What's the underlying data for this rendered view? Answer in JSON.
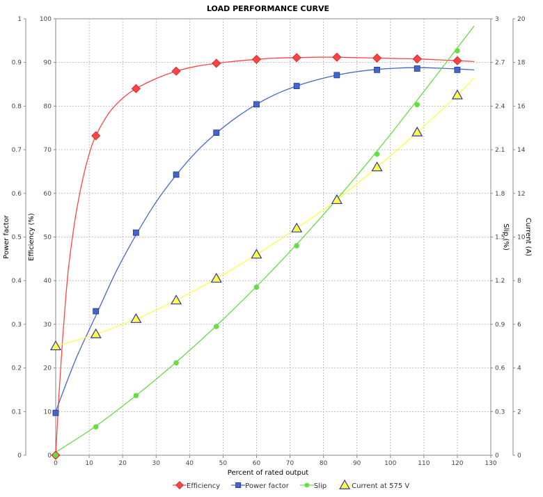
{
  "chart_data": {
    "type": "line",
    "title": "LOAD PERFORMANCE CURVE",
    "xlabel": "Percent of rated output",
    "xlim": [
      0,
      130
    ],
    "xticks": [
      0,
      10,
      20,
      30,
      40,
      50,
      60,
      70,
      80,
      90,
      100,
      110,
      120,
      130
    ],
    "grid": true,
    "legend_position": "bottom",
    "axes": [
      {
        "id": "pf",
        "label": "Power factor",
        "side": "left",
        "order": 0,
        "range": [
          0,
          1
        ],
        "ticks": [
          "0",
          "0.1",
          "0.2",
          "0.3",
          "0.4",
          "0.5",
          "0.6",
          "0.7",
          "0.8",
          "0.9",
          "1"
        ]
      },
      {
        "id": "eff",
        "label": "Efficiency (%)",
        "side": "left",
        "order": 1,
        "range": [
          0,
          100
        ],
        "ticks": [
          "0",
          "10",
          "20",
          "30",
          "40",
          "50",
          "60",
          "70",
          "80",
          "90",
          "100"
        ]
      },
      {
        "id": "slip",
        "label": "Slip (%)",
        "side": "right",
        "order": 0,
        "range": [
          0,
          3
        ],
        "ticks": [
          "0",
          "0.3",
          "0.6",
          "0.9",
          "1.2",
          "1.5",
          "1.8",
          "2.1",
          "2.4",
          "2.7",
          "3"
        ]
      },
      {
        "id": "cur",
        "label": "Current (A)",
        "side": "right",
        "order": 1,
        "range": [
          0,
          20
        ],
        "ticks": [
          "0",
          "2",
          "4",
          "6",
          "8",
          "10",
          "12",
          "14",
          "16",
          "18",
          "20"
        ]
      }
    ],
    "series": [
      {
        "name": "Efficiency",
        "axis": "eff",
        "color": "#ff4444",
        "marker": "diamond",
        "x": [
          0,
          12,
          24,
          36,
          48,
          60,
          72,
          84,
          96,
          108,
          120
        ],
        "values": [
          0,
          73.2,
          84.0,
          88.0,
          89.8,
          90.7,
          91.1,
          91.2,
          91.0,
          90.8,
          90.4
        ],
        "curve_x": [
          0,
          1,
          2,
          3,
          4,
          6,
          8,
          10,
          12,
          16,
          20,
          24,
          30,
          36,
          42,
          48,
          54,
          60,
          66,
          72,
          78,
          84,
          90,
          96,
          102,
          108,
          114,
          120,
          125
        ],
        "curve_y": [
          0,
          14,
          26,
          36,
          44,
          55,
          63,
          69,
          73.2,
          78.5,
          81.8,
          84.0,
          86.3,
          88.0,
          89.1,
          89.8,
          90.3,
          90.7,
          91.0,
          91.1,
          91.2,
          91.2,
          91.1,
          91.0,
          90.9,
          90.8,
          90.6,
          90.4,
          90.2
        ]
      },
      {
        "name": "Power factor",
        "axis": "pf",
        "color": "#4466cc",
        "marker": "square",
        "x": [
          0,
          12,
          24,
          36,
          48,
          60,
          72,
          84,
          96,
          108,
          120
        ],
        "values": [
          0.097,
          0.33,
          0.51,
          0.643,
          0.739,
          0.804,
          0.846,
          0.871,
          0.883,
          0.886,
          0.883
        ],
        "curve_x": [
          0,
          6,
          12,
          18,
          24,
          30,
          36,
          42,
          48,
          54,
          60,
          66,
          72,
          78,
          84,
          90,
          96,
          102,
          108,
          114,
          120,
          125
        ],
        "curve_y": [
          0.1,
          0.22,
          0.32,
          0.42,
          0.505,
          0.58,
          0.642,
          0.695,
          0.738,
          0.774,
          0.804,
          0.828,
          0.846,
          0.86,
          0.871,
          0.879,
          0.884,
          0.887,
          0.888,
          0.887,
          0.885,
          0.883
        ]
      },
      {
        "name": "Slip",
        "axis": "slip",
        "color": "#66dd44",
        "marker": "circle",
        "x": [
          0,
          12,
          24,
          36,
          48,
          60,
          72,
          84,
          96,
          108,
          120
        ],
        "values": [
          0,
          0.195,
          0.41,
          0.635,
          0.885,
          1.155,
          1.44,
          1.75,
          2.07,
          2.41,
          2.78
        ],
        "curve_x": [
          0,
          12,
          24,
          36,
          48,
          60,
          72,
          84,
          96,
          108,
          120,
          125
        ],
        "curve_y": [
          0.02,
          0.2,
          0.41,
          0.64,
          0.89,
          1.16,
          1.45,
          1.76,
          2.09,
          2.44,
          2.8,
          2.95
        ]
      },
      {
        "name": "Current at 575 V",
        "axis": "cur",
        "color": "#ffff44",
        "marker": "triangle",
        "x": [
          0,
          12,
          24,
          36,
          48,
          60,
          72,
          84,
          96,
          108,
          120
        ],
        "values": [
          5.0,
          5.55,
          6.25,
          7.1,
          8.1,
          9.2,
          10.4,
          11.7,
          13.2,
          14.8,
          16.5
        ],
        "curve_x": [
          0,
          12,
          24,
          36,
          48,
          60,
          72,
          84,
          96,
          108,
          120,
          125
        ],
        "curve_y": [
          5.0,
          5.55,
          6.25,
          7.1,
          8.1,
          9.2,
          10.4,
          11.7,
          13.2,
          14.8,
          16.5,
          17.3
        ]
      }
    ]
  }
}
